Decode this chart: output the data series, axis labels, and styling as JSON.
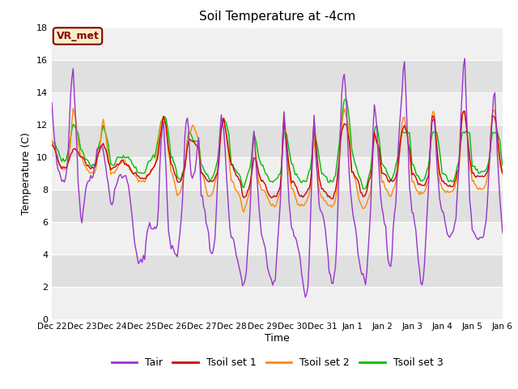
{
  "title": "Soil Temperature at -4cm",
  "xlabel": "Time",
  "ylabel": "Temperature (C)",
  "ylim": [
    0,
    18
  ],
  "yticks": [
    0,
    2,
    4,
    6,
    8,
    10,
    12,
    14,
    16,
    18
  ],
  "annotation_text": "VR_met",
  "annotation_color": "#8B0000",
  "annotation_bg": "#f5f0c8",
  "legend_labels": [
    "Tair",
    "Tsoil set 1",
    "Tsoil set 2",
    "Tsoil set 3"
  ],
  "line_colors": [
    "#9933CC",
    "#CC0000",
    "#FF8800",
    "#00BB00"
  ],
  "bg_color": "#ffffff",
  "plot_bg_color": "#ffffff",
  "band_color_dark": "#e0e0e0",
  "band_color_light": "#f0f0f0",
  "xtick_labels": [
    "Dec 22",
    "Dec 23",
    "Dec 24",
    "Dec 25",
    "Dec 26",
    "Dec 27",
    "Dec 28",
    "Dec 29",
    "Dec 30",
    "Dec 31",
    "Jan 1",
    "Jan 2",
    "Jan 3",
    "Jan 4",
    "Jan 5",
    "Jan 6"
  ]
}
